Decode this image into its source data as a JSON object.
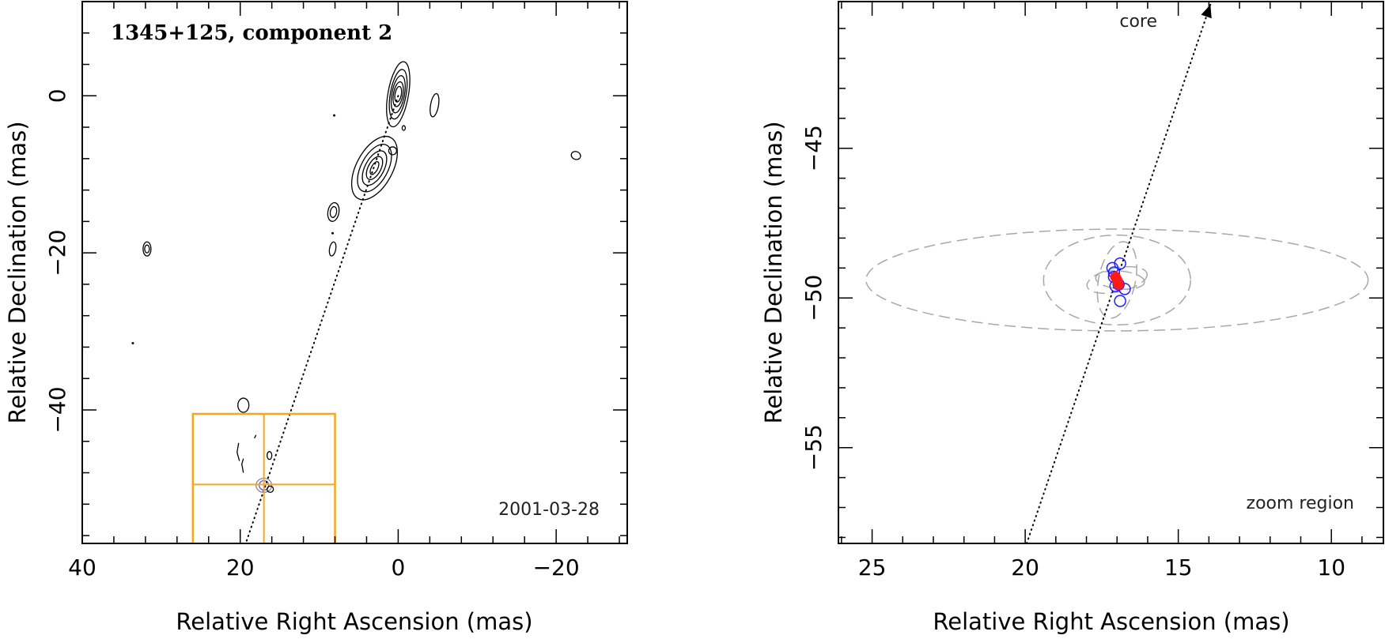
{
  "chart_data": [
    {
      "type": "contour",
      "title": "1345+125, component 2",
      "date_label": "2001-03-28",
      "xlabel": "Relative Right Ascension (mas)",
      "ylabel": "Relative Declination (mas)",
      "xlim": [
        40,
        -29
      ],
      "ylim": [
        -57,
        12
      ],
      "x_reversed": true,
      "xticks": [
        40,
        20,
        0,
        -20
      ],
      "xtick_labels": [
        "40",
        "20",
        "0",
        "−20"
      ],
      "yticks": [
        0,
        -20,
        -40
      ],
      "ytick_labels": [
        "0",
        "−20",
        "−40"
      ],
      "jet_line": {
        "from": [
          0,
          0
        ],
        "to": [
          19.3,
          -57
        ]
      },
      "zoom_box": {
        "x_range": [
          26,
          8
        ],
        "y_range": [
          -57,
          -40.5
        ],
        "cross_x": 17,
        "cross_y": -49.5,
        "color": "#f5a623"
      },
      "contour_groups": [
        {
          "name": "core",
          "x": 0,
          "y": 0.2,
          "rx": [
            0.4,
            0.6,
            0.8,
            1.0,
            1.3
          ],
          "ry": [
            1.0,
            1.6,
            2.4,
            3.2,
            4.2
          ],
          "angle": 10
        },
        {
          "name": "knot",
          "x": 3,
          "y": -9.2,
          "rx": [
            0.4,
            0.8,
            1.2,
            1.7,
            2.3
          ],
          "ry": [
            0.9,
            1.6,
            2.4,
            3.3,
            4.4
          ],
          "angle": 28
        },
        {
          "name": "knot-2",
          "x": 8.2,
          "y": -14.8,
          "rx": [
            0.4,
            0.7
          ],
          "ry": [
            0.7,
            1.2
          ],
          "angle": 10
        },
        {
          "name": "knot-3",
          "x": 8.3,
          "y": -19.5,
          "rx": [
            0.4
          ],
          "ry": [
            0.9
          ],
          "angle": 10
        },
        {
          "name": "east-blob",
          "x": 31.8,
          "y": -19.5,
          "rx": [
            0.3,
            0.5
          ],
          "ry": [
            0.5,
            0.9
          ],
          "angle": 0
        },
        {
          "name": "west-blob",
          "x": -4.6,
          "y": -1.2,
          "rx": [
            0.5
          ],
          "ry": [
            1.5
          ],
          "angle": 10
        },
        {
          "name": "far-west-blob",
          "x": -22.5,
          "y": -7.6,
          "rx": [
            0.6
          ],
          "ry": [
            0.5
          ],
          "angle": 20
        },
        {
          "name": "south-blob",
          "x": 19.6,
          "y": -39.4,
          "rx": [
            0.7
          ],
          "ry": [
            0.9
          ],
          "angle": 0
        },
        {
          "name": "small-blob-1",
          "x": 0.7,
          "y": -7.0,
          "rx": [
            0.5
          ],
          "ry": [
            0.5
          ],
          "angle": 0
        },
        {
          "name": "small-blob-2",
          "x": -0.7,
          "y": -4.1,
          "rx": [
            0.2
          ],
          "ry": [
            0.3
          ],
          "angle": 0
        },
        {
          "name": "component-2",
          "x": 17,
          "y": -49.6,
          "rx": [
            0.6,
            1.0
          ],
          "ry": [
            0.6,
            0.9
          ],
          "angle": 0
        },
        {
          "name": "small-blob-3",
          "x": 16.3,
          "y": -45.8,
          "rx": [
            0.3
          ],
          "ry": [
            0.5
          ],
          "angle": 0
        },
        {
          "name": "small-blob-4",
          "x": 16.2,
          "y": -50.1,
          "rx": [
            0.4
          ],
          "ry": [
            0.4
          ],
          "angle": 0
        }
      ],
      "contour_arcs": [
        {
          "name": "arc-1",
          "points": [
            [
              20.1,
              -46.5
            ],
            [
              20.4,
              -45.4
            ],
            [
              20.2,
              -44.2
            ]
          ]
        },
        {
          "name": "arc-2",
          "points": [
            [
              19.6,
              -48
            ],
            [
              19.8,
              -46.9
            ],
            [
              19.6,
              -46.2
            ]
          ]
        },
        {
          "name": "arc-3",
          "points": [
            [
              18.2,
              -43.6
            ],
            [
              18,
              -43.2
            ]
          ]
        }
      ],
      "points": [
        {
          "x": 8.1,
          "y": -2.5
        },
        {
          "x": 33.6,
          "y": -31.5
        },
        {
          "x": 8.3,
          "y": -17.5
        }
      ]
    },
    {
      "type": "scatter",
      "note": "zoom region",
      "core_label": "core",
      "xlabel": "Relative Right Ascension (mas)",
      "ylabel": "Relative Declination (mas)",
      "xlim": [
        26.1,
        8.3
      ],
      "ylim": [
        -58.2,
        -40.1
      ],
      "x_reversed": true,
      "xticks": [
        25,
        20,
        15,
        10
      ],
      "xtick_labels": [
        "25",
        "20",
        "15",
        "10"
      ],
      "yticks": [
        -45,
        -50,
        -55
      ],
      "ytick_labels": [
        "−45",
        "−50",
        "−55"
      ],
      "jet_line": {
        "from": [
          19.95,
          -58.2
        ],
        "to": [
          13.95,
          -40.2
        ]
      },
      "error_ellipses": [
        {
          "x": 17,
          "y": -49.4,
          "rx": 8.2,
          "ry": 1.7,
          "angle": 0
        },
        {
          "x": 17,
          "y": -49.4,
          "rx": 2.4,
          "ry": 1.5,
          "angle": 0
        },
        {
          "x": 17,
          "y": -49.4,
          "rx": 0.6,
          "ry": 1.3,
          "angle": 12
        },
        {
          "x": 17,
          "y": -49.4,
          "rx": 1.0,
          "ry": 0.4,
          "angle": -12
        },
        {
          "x": 16.9,
          "y": -49.4,
          "rx": 0.8,
          "ry": 0.3,
          "angle": 5
        }
      ],
      "series": [
        {
          "marker": "circle",
          "color": "#1f1fff",
          "x": [
            17.15,
            16.9,
            17.1,
            16.95,
            17.05,
            16.75,
            17.1,
            16.9
          ],
          "y": [
            -49.0,
            -48.85,
            -49.3,
            -49.55,
            -49.6,
            -49.7,
            -49.15,
            -50.1
          ]
        },
        {
          "marker": "filled-circle",
          "color": "#ff1a1a",
          "x": [
            17.0,
            16.95,
            17.05
          ],
          "y": [
            -49.4,
            -49.55,
            -49.3
          ]
        }
      ]
    }
  ]
}
